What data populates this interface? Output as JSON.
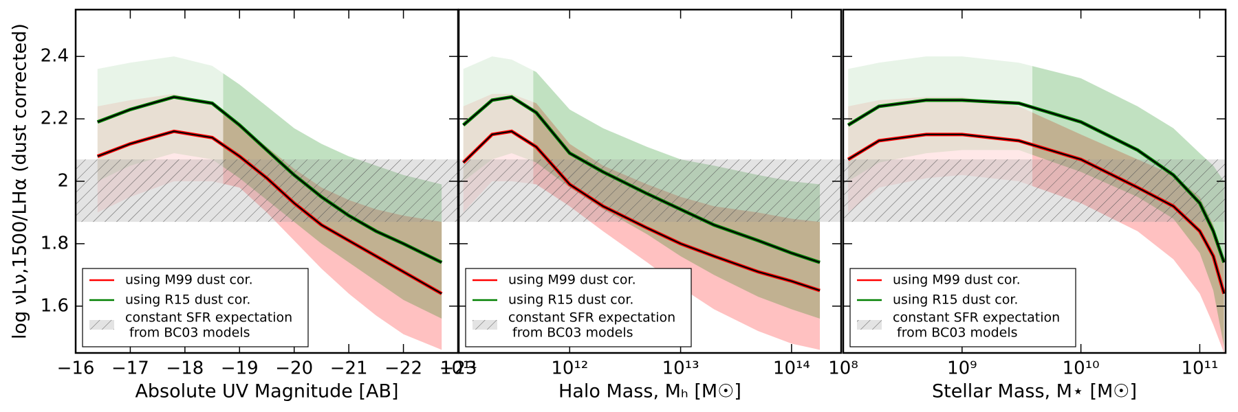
{
  "chart_data": [
    {
      "type": "line",
      "xlabel": "Absolute UV Magnitude [AB]",
      "ylabel": "log νLν,1500/LHα (dust corrected)",
      "xscale": "linear",
      "xlim": [
        -16,
        -23
      ],
      "xticks": [
        {
          "value": -16,
          "label": "−16"
        },
        {
          "value": -17,
          "label": "−17"
        },
        {
          "value": -18,
          "label": "−18"
        },
        {
          "value": -19,
          "label": "−19"
        },
        {
          "value": -20,
          "label": "−20"
        },
        {
          "value": -21,
          "label": "−21"
        },
        {
          "value": -22,
          "label": "−22"
        },
        {
          "value": -23,
          "label": "−23"
        }
      ],
      "ylim": [
        1.45,
        2.55
      ],
      "yticks": [
        1.6,
        1.8,
        2.0,
        2.2,
        2.4
      ],
      "x": [
        -16.4,
        -17,
        -17.8,
        -18.5,
        -19,
        -19.5,
        -20,
        -20.5,
        -21,
        -21.5,
        -22,
        -22.7
      ],
      "line_color": "#000000",
      "legend": "lower left",
      "band": {
        "name": [
          "constant SFR expectation",
          " from BC03 models"
        ],
        "range": [
          1.87,
          2.07
        ],
        "color": "#999999"
      },
      "series": [
        {
          "name": "using M99 dust cor.",
          "color": "#ff0000",
          "light_until": -18.7,
          "values": [
            2.08,
            2.12,
            2.16,
            2.14,
            2.08,
            2.01,
            1.93,
            1.86,
            1.81,
            1.76,
            1.71,
            1.64
          ],
          "upper": [
            2.24,
            2.26,
            2.28,
            2.25,
            2.18,
            2.11,
            2.04,
            1.98,
            1.94,
            1.91,
            1.89,
            1.87
          ],
          "lower": [
            1.9,
            1.95,
            2.0,
            2.0,
            1.98,
            1.9,
            1.81,
            1.72,
            1.64,
            1.57,
            1.51,
            1.46
          ]
        },
        {
          "name": "using R15 dust cor.",
          "color": "#008000",
          "light_until": -18.7,
          "values": [
            2.19,
            2.23,
            2.27,
            2.25,
            2.18,
            2.1,
            2.02,
            1.95,
            1.89,
            1.84,
            1.8,
            1.74
          ],
          "upper": [
            2.36,
            2.38,
            2.4,
            2.37,
            2.31,
            2.24,
            2.17,
            2.12,
            2.08,
            2.05,
            2.02,
            1.99
          ],
          "lower": [
            2.0,
            2.05,
            2.09,
            2.07,
            2.01,
            1.94,
            1.87,
            1.8,
            1.74,
            1.68,
            1.62,
            1.56
          ]
        }
      ]
    },
    {
      "type": "line",
      "xlabel": "Halo Mass, Mₕ [M☉]",
      "xscale": "log",
      "xlim": [
        100000000000.0,
        280000000000000.0
      ],
      "xticks": [
        {
          "value": 100000000000.0,
          "label": "10¹¹"
        },
        {
          "value": 1000000000000.0,
          "label": "10¹²"
        },
        {
          "value": 10000000000000.0,
          "label": "10¹³"
        },
        {
          "value": 100000000000000.0,
          "label": "10¹⁴"
        }
      ],
      "ylim": [
        1.45,
        2.55
      ],
      "x": [
        110000000000.0,
        200000000000.0,
        300000000000.0,
        500000000000.0,
        1000000000000.0,
        2000000000000.0,
        5000000000000.0,
        10000000000000.0,
        20000000000000.0,
        50000000000000.0,
        100000000000000.0,
        180000000000000.0
      ],
      "line_color": "#000000",
      "legend": "lower left",
      "band": {
        "name": [
          "constant SFR expectation",
          " from BC03 models"
        ],
        "range": [
          1.87,
          2.07
        ],
        "color": "#999999"
      },
      "series": [
        {
          "name": "using M99 dust cor.",
          "color": "#ff0000",
          "light_until": 470000000000.0,
          "values": [
            2.06,
            2.15,
            2.16,
            2.11,
            1.99,
            1.92,
            1.85,
            1.8,
            1.76,
            1.71,
            1.68,
            1.65
          ],
          "upper": [
            2.24,
            2.28,
            2.28,
            2.25,
            2.12,
            2.05,
            1.99,
            1.95,
            1.92,
            1.9,
            1.88,
            1.87
          ],
          "lower": [
            1.9,
            2.0,
            2.0,
            1.99,
            1.92,
            1.84,
            1.74,
            1.66,
            1.59,
            1.52,
            1.48,
            1.46
          ]
        },
        {
          "name": "using R15 dust cor.",
          "color": "#008000",
          "light_until": 470000000000.0,
          "values": [
            2.18,
            2.26,
            2.27,
            2.22,
            2.09,
            2.03,
            1.96,
            1.91,
            1.86,
            1.81,
            1.77,
            1.74
          ],
          "upper": [
            2.36,
            2.4,
            2.39,
            2.35,
            2.23,
            2.17,
            2.11,
            2.07,
            2.05,
            2.02,
            2.0,
            1.99
          ],
          "lower": [
            2.0,
            2.07,
            2.09,
            2.06,
            1.98,
            1.91,
            1.83,
            1.76,
            1.7,
            1.63,
            1.59,
            1.56
          ]
        }
      ]
    },
    {
      "type": "line",
      "xlabel": "Stellar Mass, M⋆ [M☉]",
      "xscale": "log",
      "xlim": [
        100000000.0,
        165000000000.0
      ],
      "xticks": [
        {
          "value": 100000000.0,
          "label": "10⁸"
        },
        {
          "value": 1000000000.0,
          "label": "10⁹"
        },
        {
          "value": 10000000000.0,
          "label": "10¹⁰"
        },
        {
          "value": 100000000000.0,
          "label": "10¹¹"
        }
      ],
      "ylim": [
        1.45,
        2.55
      ],
      "x": [
        110000000.0,
        200000000.0,
        500000000.0,
        1000000000.0,
        3000000000.0,
        10000000000.0,
        30000000000.0,
        60000000000.0,
        100000000000.0,
        130000000000.0,
        160000000000.0
      ],
      "line_color": "#000000",
      "legend": "lower left",
      "band": {
        "name": [
          "constant SFR expectation",
          " from BC03 models"
        ],
        "range": [
          1.87,
          2.07
        ],
        "color": "#999999"
      },
      "series": [
        {
          "name": "using M99 dust cor.",
          "color": "#ff0000",
          "light_until": 3900000000.0,
          "values": [
            2.07,
            2.13,
            2.15,
            2.15,
            2.13,
            2.07,
            1.98,
            1.92,
            1.84,
            1.76,
            1.64
          ],
          "upper": [
            2.24,
            2.26,
            2.27,
            2.27,
            2.24,
            2.15,
            2.07,
            2.02,
            1.95,
            1.86,
            1.74
          ],
          "lower": [
            1.9,
            1.98,
            2.01,
            2.02,
            2.0,
            1.93,
            1.84,
            1.75,
            1.64,
            1.54,
            1.45
          ]
        },
        {
          "name": "using R15 dust cor.",
          "color": "#008000",
          "light_until": 3900000000.0,
          "values": [
            2.18,
            2.24,
            2.26,
            2.26,
            2.25,
            2.19,
            2.1,
            2.02,
            1.93,
            1.84,
            1.74
          ],
          "upper": [
            2.36,
            2.38,
            2.4,
            2.4,
            2.38,
            2.33,
            2.24,
            2.17,
            2.09,
            2.05,
            2.0
          ],
          "lower": [
            2.0,
            2.06,
            2.09,
            2.1,
            2.1,
            2.03,
            1.95,
            1.88,
            1.77,
            1.65,
            1.47
          ]
        }
      ]
    }
  ]
}
